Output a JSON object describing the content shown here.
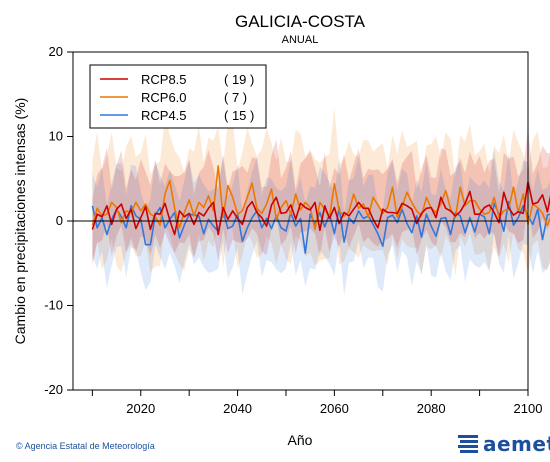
{
  "colors": {
    "RCP8.5": "#cc0000",
    "RCP6.0": "#ee7700",
    "RCP4.5": "#3377dd",
    "brand": "#1c4f9c"
  },
  "footer": {
    "credit": "© Agencia Estatal de Meteorología",
    "logo_text": "aemet",
    "logo_icon": "aemet-logo-icon"
  },
  "chart_data": {
    "type": "line",
    "title": "GALICIA-COSTA",
    "subtitle": "ANUAL",
    "xlabel": "Año",
    "ylabel": "Cambio en precipitaciones intensas (%)",
    "xlim": [
      2006,
      2100
    ],
    "ylim": [
      -20,
      20
    ],
    "xticks": [
      2020,
      2040,
      2060,
      2080,
      2100
    ],
    "yticks": [
      -20,
      -10,
      0,
      10,
      20
    ],
    "grid": false,
    "legend_position": "top-left",
    "zero_line": true,
    "x_start": 2010,
    "series": [
      {
        "name": "RCP8.5",
        "count": "( 19 )",
        "values": [
          -1.0,
          0.8,
          0.5,
          1.8,
          -0.4,
          1.4,
          2.0,
          0.3,
          1.4,
          -0.9,
          0.4,
          1.7,
          -1.0,
          0.9,
          0.8,
          2.1,
          0.1,
          -1.6,
          1.2,
          0.5,
          0.9,
          -0.4,
          1.0,
          0.6,
          1.5,
          2.2,
          -1.6,
          1.6,
          0.2,
          1.2,
          0.3,
          -0.4,
          1.6,
          2.3,
          1.0,
          0.4,
          -0.6,
          1.9,
          2.8,
          0.9,
          1.0,
          1.9,
          0.2,
          2.1,
          1.6,
          1.3,
          2.2,
          -1.1,
          1.8,
          0.3,
          1.6,
          -0.3,
          1.0,
          0.6,
          1.4,
          2.2,
          1.5,
          1.5,
          0.2,
          -0.8,
          1.4,
          1.0,
          1.0,
          0.9,
          2.1,
          1.8,
          1.4,
          -0.3,
          0.9,
          1.5,
          1.6,
          0.4,
          2.8,
          1.5,
          1.2,
          0.6,
          1.1,
          2.1,
          3.5,
          0.8,
          0.8,
          1.6,
          1.9,
          1.0,
          -0.2,
          3.4,
          1.6,
          0.7,
          1.1,
          0.9,
          4.6,
          2.0,
          2.2,
          3.1,
          1.1,
          3.9
        ],
        "band": {
          "upper": 6.5,
          "lower": -3.5
        }
      },
      {
        "name": "RCP6.0",
        "count": "(  7 )",
        "values": [
          -0.5,
          1.5,
          0.6,
          0.8,
          2.2,
          1.6,
          -0.2,
          1.2,
          1.0,
          2.2,
          1.2,
          2.0,
          0.8,
          0.5,
          -0.5,
          3.2,
          4.8,
          1.5,
          -0.8,
          1.0,
          2.5,
          0.6,
          2.2,
          1.6,
          3.0,
          1.2,
          6.5,
          0.4,
          4.2,
          2.8,
          0.8,
          1.2,
          2.8,
          4.5,
          1.5,
          0.9,
          2.0,
          3.8,
          0.2,
          1.6,
          2.4,
          0.8,
          3.2,
          1.3,
          2.2,
          1.6,
          -1.0,
          2.2,
          1.4,
          0.4,
          4.4,
          1.2,
          0.6,
          1.1,
          3.2,
          1.5,
          2.0,
          0.5,
          2.8,
          1.9,
          0.9,
          1.6,
          4.0,
          0.4,
          1.7,
          3.4,
          2.2,
          1.2,
          0.6,
          2.8,
          1.5,
          1.0,
          2.0,
          3.6,
          1.4,
          0.4,
          4.0,
          1.8,
          2.4,
          2.4,
          1.4,
          0.8,
          1.0,
          2.8,
          0.4,
          1.2,
          1.4,
          4.0,
          1.0,
          3.2,
          -0.4,
          2.0,
          1.6,
          0.9,
          -0.5,
          0.9
        ],
        "band": {
          "upper": 8.5,
          "lower": -6.0
        }
      },
      {
        "name": "RCP4.5",
        "count": "( 15 )",
        "values": [
          1.8,
          -0.8,
          0.4,
          -1.6,
          0.2,
          1.4,
          0.5,
          -0.8,
          1.8,
          0.6,
          0.2,
          -2.8,
          -2.8,
          0.7,
          1.6,
          -0.8,
          0.2,
          1.0,
          -2.0,
          -0.5,
          0.8,
          0.7,
          0.6,
          -1.5,
          0.2,
          -0.6,
          -1.2,
          1.2,
          -0.9,
          -0.6,
          0.8,
          -2.4,
          -0.8,
          0.4,
          1.2,
          -0.8,
          0.3,
          -0.9,
          0.6,
          -0.8,
          -1.2,
          1.0,
          -0.6,
          0.3,
          -3.8,
          0.8,
          -0.4,
          1.0,
          -0.7,
          0.8,
          -1.5,
          1.6,
          -2.5,
          0.4,
          -0.3,
          1.2,
          0.3,
          0.6,
          -0.4,
          -1.5,
          -3.0,
          0.4,
          0.7,
          -0.2,
          1.4,
          -0.3,
          -1.4,
          0.6,
          -1.9,
          0.8,
          -0.6,
          -1.8,
          0.3,
          0.4,
          -1.6,
          1.0,
          0.6,
          -1.4,
          0.4,
          -1.3,
          0.8,
          0.5,
          -1.5,
          2.1,
          0.8,
          -1.2,
          2.3,
          -0.5,
          0.4,
          1.8,
          0.6,
          -0.4,
          1.4,
          -2.2,
          0.7,
          0.9
        ],
        "band": {
          "upper": 6.0,
          "lower": -5.5
        }
      }
    ]
  }
}
